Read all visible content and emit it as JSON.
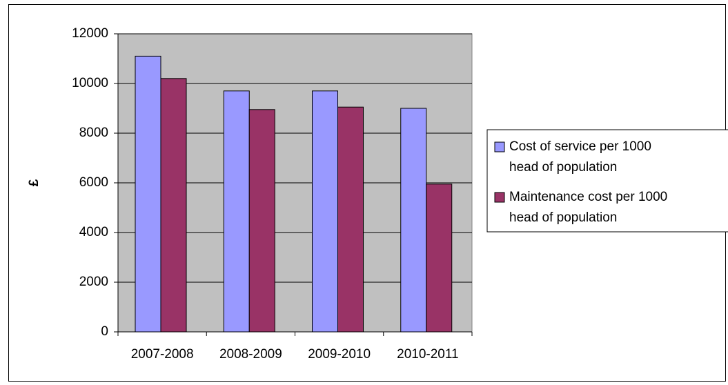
{
  "chart_data": {
    "type": "bar",
    "title": "",
    "xlabel": "",
    "ylabel": "£",
    "categories": [
      "2007-2008",
      "2008-2009",
      "2009-2010",
      "2010-2011"
    ],
    "series": [
      {
        "name": "Cost of service per 1000 head of population",
        "legend_lines": [
          "Cost of service per 1000",
          "head of population"
        ],
        "color": "#9999ff",
        "values": [
          11100,
          9700,
          9700,
          9000
        ]
      },
      {
        "name": "Maintenance cost per 1000 head of population",
        "legend_lines": [
          "Maintenance cost per 1000",
          "head of population"
        ],
        "color": "#993366",
        "values": [
          10200,
          8950,
          9050,
          5950
        ]
      }
    ],
    "ylim": [
      0,
      12000
    ],
    "yticks": [
      0,
      2000,
      4000,
      6000,
      8000,
      10000,
      12000
    ],
    "ytick_labels": [
      "0",
      "2000",
      "4000",
      "6000",
      "8000",
      "10000",
      "12000"
    ],
    "grid": true,
    "plot_background": "#c0c0c0",
    "legend_position": "right"
  }
}
